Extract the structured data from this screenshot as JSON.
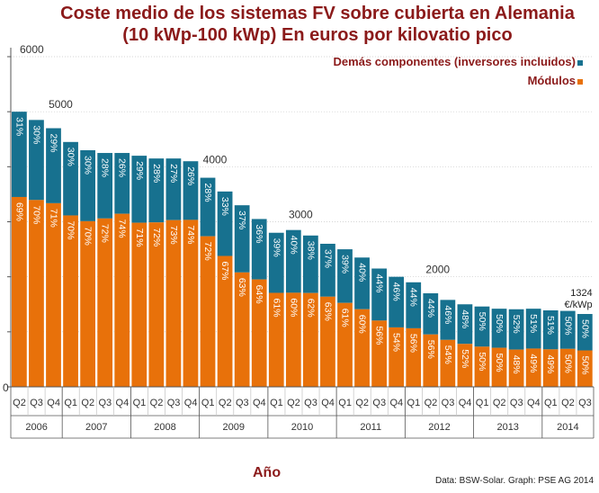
{
  "title_line1": "Coste medio de los sistemas  FV sobre cubierta en Alemania",
  "title_line2": "(10 kWp-100 kWp) En euros por kilovatio pico",
  "source": "Data: BSW-Solar. Graph: PSE AG 2014",
  "colors": {
    "title": "#8b1a1a",
    "modules": "#e8710a",
    "other": "#17718f",
    "grid": "#c8c8c8",
    "axis": "#555555"
  },
  "chart_data": {
    "type": "bar",
    "stacked": true,
    "xlabel": "Año",
    "ylabel": "",
    "ylim": [
      0,
      6000
    ],
    "yticks": [
      0,
      2000,
      3000,
      4000,
      5000,
      6000
    ],
    "grid": true,
    "legend": "top-right",
    "years": [
      {
        "label": "2006",
        "count": 3
      },
      {
        "label": "2007",
        "count": 4
      },
      {
        "label": "2008",
        "count": 4
      },
      {
        "label": "2009",
        "count": 4
      },
      {
        "label": "2010",
        "count": 4
      },
      {
        "label": "2011",
        "count": 4
      },
      {
        "label": "2012",
        "count": 4
      },
      {
        "label": "2013",
        "count": 4
      },
      {
        "label": "2014",
        "count": 3
      }
    ],
    "categories": [
      "Q2",
      "Q3",
      "Q4",
      "Q1",
      "Q2",
      "Q3",
      "Q4",
      "Q1",
      "Q2",
      "Q3",
      "Q4",
      "Q1",
      "Q2",
      "Q3",
      "Q4",
      "Q1",
      "Q2",
      "Q3",
      "Q4",
      "Q1",
      "Q2",
      "Q3",
      "Q4",
      "Q1",
      "Q2",
      "Q3",
      "Q4",
      "Q1",
      "Q2",
      "Q3",
      "Q4",
      "Q1",
      "Q2",
      "Q3"
    ],
    "totals": [
      5000,
      4850,
      4700,
      4450,
      4300,
      4250,
      4250,
      4200,
      4150,
      4150,
      4100,
      3800,
      3550,
      3300,
      3050,
      2800,
      2850,
      2750,
      2600,
      2500,
      2350,
      2150,
      2000,
      1900,
      1700,
      1580,
      1500,
      1460,
      1420,
      1410,
      1420,
      1390,
      1380,
      1324
    ],
    "series": [
      {
        "name": "Demás componentes (inversores incluidos)",
        "key": "other",
        "percent_labels": [
          "31%",
          "30%",
          "29%",
          "30%",
          "30%",
          "28%",
          "26%",
          "29%",
          "28%",
          "27%",
          "26%",
          "28%",
          "33%",
          "37%",
          "36%",
          "39%",
          "40%",
          "38%",
          "37%",
          "39%",
          "40%",
          "44%",
          "46%",
          "44%",
          "44%",
          "46%",
          "48%",
          "50%",
          "50%",
          "52%",
          "51%",
          "51%",
          "50%",
          "50%"
        ]
      },
      {
        "name": "Módulos",
        "key": "modules",
        "percent_labels": [
          "69%",
          "70%",
          "71%",
          "70%",
          "70%",
          "72%",
          "74%",
          "71%",
          "72%",
          "73%",
          "74%",
          "72%",
          "67%",
          "63%",
          "64%",
          "61%",
          "60%",
          "62%",
          "63%",
          "61%",
          "60%",
          "56%",
          "54%",
          "56%",
          "56%",
          "54%",
          "52%",
          "50%",
          "50%",
          "48%",
          "49%",
          "49%",
          "50%",
          "50%"
        ]
      }
    ],
    "annotations": [
      {
        "label": "6000",
        "index": 0,
        "value": 6000
      },
      {
        "label": "5000",
        "index": 2,
        "value": 5000
      },
      {
        "label": "4000",
        "index": 11,
        "value": 4000
      },
      {
        "label": "3000",
        "index": 16,
        "value": 3000
      },
      {
        "label": "2000",
        "index": 24,
        "value": 2000
      }
    ],
    "end_label_value": "1324",
    "end_label_unit": "€/kWp"
  }
}
